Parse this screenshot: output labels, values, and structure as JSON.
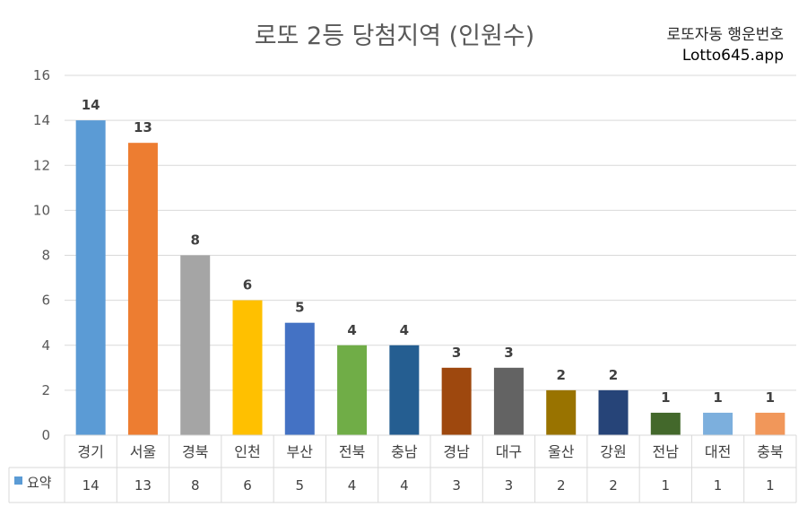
{
  "header": {
    "brand_line1": "로또자동 행운번호",
    "brand_line2": "Lotto645.app"
  },
  "chart_data": {
    "type": "bar",
    "title": "로또 2등 당첨지역 (인원수)",
    "categories": [
      "경기",
      "서울",
      "경북",
      "인천",
      "부산",
      "전북",
      "충남",
      "경남",
      "대구",
      "울산",
      "강원",
      "전남",
      "대전",
      "충북"
    ],
    "series": [
      {
        "name": "요약",
        "values": [
          14,
          13,
          8,
          6,
          5,
          4,
          4,
          3,
          3,
          2,
          2,
          1,
          1,
          1
        ]
      }
    ],
    "bar_colors": [
      "#5b9bd5",
      "#ed7d31",
      "#a5a5a5",
      "#ffc000",
      "#4472c4",
      "#70ad47",
      "#255e91",
      "#9e480e",
      "#636363",
      "#997300",
      "#264478",
      "#43682b",
      "#7cafdd",
      "#f1975a"
    ],
    "legend_color": "#5b9bd5",
    "yticks": [
      0,
      2,
      4,
      6,
      8,
      10,
      12,
      14,
      16
    ],
    "ylim": [
      0,
      16
    ],
    "grid": true,
    "data_table": true
  }
}
